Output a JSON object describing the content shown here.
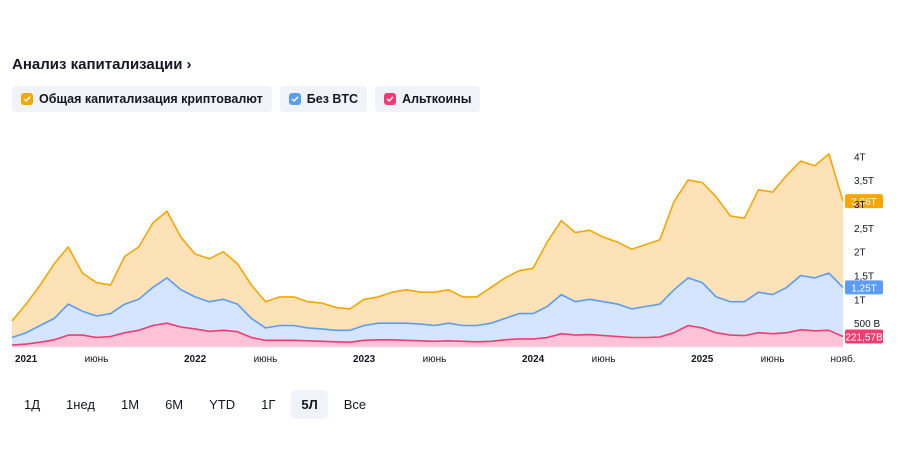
{
  "header": {
    "title": "Анализ капитализации",
    "title_arrow": "›"
  },
  "legend": [
    {
      "label": "Общая капитализация криптовалют",
      "color": "#f7a600",
      "icon": "check-icon"
    },
    {
      "label": "Без BTC",
      "color": "#5b9cf6",
      "icon": "check-icon"
    },
    {
      "label": "Альткоины",
      "color": "#f23c71",
      "icon": "check-icon"
    }
  ],
  "ranges": [
    "1Д",
    "1нед",
    "1М",
    "6М",
    "YTD",
    "1Г",
    "5Л",
    "Все"
  ],
  "active_range": "5Л",
  "chart_data": {
    "type": "area",
    "x_axis_labels": [
      "2021",
      "июнь",
      "2022",
      "июнь",
      "2023",
      "июнь",
      "2024",
      "июнь",
      "2025",
      "июнь",
      "нояб."
    ],
    "y_axis_labels": [
      "500 B",
      "1T",
      "1,5T",
      "2T",
      "2,5T",
      "3T",
      "3,5T",
      "4T"
    ],
    "y_axis_values": [
      0.5,
      1,
      1.5,
      2,
      2.5,
      3,
      3.5,
      4
    ],
    "ylim": [
      0,
      4.3
    ],
    "x": [
      "2020-11",
      "2021-01",
      "2021-02",
      "2021-03",
      "2021-04",
      "2021-05",
      "2021-06",
      "2021-07",
      "2021-08",
      "2021-09",
      "2021-10",
      "2021-11",
      "2021-12",
      "2022-01",
      "2022-02",
      "2022-03",
      "2022-04",
      "2022-05",
      "2022-06",
      "2022-07",
      "2022-08",
      "2022-09",
      "2022-10",
      "2022-11",
      "2022-12",
      "2023-01",
      "2023-02",
      "2023-03",
      "2023-04",
      "2023-05",
      "2023-06",
      "2023-07",
      "2023-08",
      "2023-09",
      "2023-10",
      "2023-11",
      "2023-12",
      "2024-01",
      "2024-02",
      "2024-03",
      "2024-04",
      "2024-05",
      "2024-06",
      "2024-07",
      "2024-08",
      "2024-09",
      "2024-10",
      "2024-11",
      "2024-12",
      "2025-01",
      "2025-02",
      "2025-03",
      "2025-04",
      "2025-05",
      "2025-06",
      "2025-07",
      "2025-08",
      "2025-09",
      "2025-10",
      "2025-11"
    ],
    "series": [
      {
        "name": "Общая капитализация криптовалют",
        "color": "#f7a600",
        "values": [
          0.55,
          0.9,
          1.3,
          1.75,
          2.1,
          1.55,
          1.35,
          1.3,
          1.9,
          2.1,
          2.6,
          2.85,
          2.3,
          1.95,
          1.85,
          2.0,
          1.75,
          1.3,
          0.95,
          1.05,
          1.05,
          0.95,
          0.92,
          0.83,
          0.8,
          1.0,
          1.05,
          1.15,
          1.2,
          1.15,
          1.15,
          1.2,
          1.05,
          1.05,
          1.25,
          1.45,
          1.6,
          1.65,
          2.2,
          2.65,
          2.4,
          2.45,
          2.3,
          2.2,
          2.05,
          2.15,
          2.25,
          3.05,
          3.5,
          3.45,
          3.15,
          2.75,
          2.7,
          3.3,
          3.25,
          3.6,
          3.9,
          3.8,
          4.05,
          3.06
        ]
      },
      {
        "name": "Без BTC",
        "color": "#5b9cf6",
        "values": [
          0.2,
          0.3,
          0.45,
          0.6,
          0.9,
          0.75,
          0.65,
          0.7,
          0.9,
          1.0,
          1.25,
          1.45,
          1.2,
          1.05,
          0.95,
          1.0,
          0.9,
          0.6,
          0.4,
          0.45,
          0.45,
          0.4,
          0.38,
          0.35,
          0.35,
          0.45,
          0.5,
          0.5,
          0.5,
          0.48,
          0.45,
          0.5,
          0.45,
          0.45,
          0.5,
          0.6,
          0.7,
          0.7,
          0.85,
          1.1,
          0.95,
          1.0,
          0.95,
          0.9,
          0.8,
          0.85,
          0.9,
          1.2,
          1.45,
          1.35,
          1.05,
          0.95,
          0.95,
          1.15,
          1.1,
          1.25,
          1.5,
          1.45,
          1.55,
          1.25
        ]
      },
      {
        "name": "Альткоины",
        "color": "#f23c71",
        "values": [
          0.04,
          0.06,
          0.1,
          0.15,
          0.25,
          0.25,
          0.2,
          0.22,
          0.3,
          0.35,
          0.45,
          0.5,
          0.42,
          0.38,
          0.33,
          0.35,
          0.32,
          0.2,
          0.14,
          0.14,
          0.14,
          0.13,
          0.12,
          0.11,
          0.1,
          0.14,
          0.15,
          0.15,
          0.14,
          0.13,
          0.12,
          0.13,
          0.12,
          0.11,
          0.12,
          0.15,
          0.17,
          0.17,
          0.2,
          0.28,
          0.25,
          0.26,
          0.24,
          0.22,
          0.2,
          0.2,
          0.21,
          0.3,
          0.45,
          0.4,
          0.3,
          0.25,
          0.24,
          0.3,
          0.28,
          0.3,
          0.36,
          0.34,
          0.35,
          0.22
        ]
      }
    ],
    "last_values": [
      "3,06T",
      "1,25T",
      "221,57B"
    ],
    "grid": false,
    "legend_position": "top-left"
  }
}
